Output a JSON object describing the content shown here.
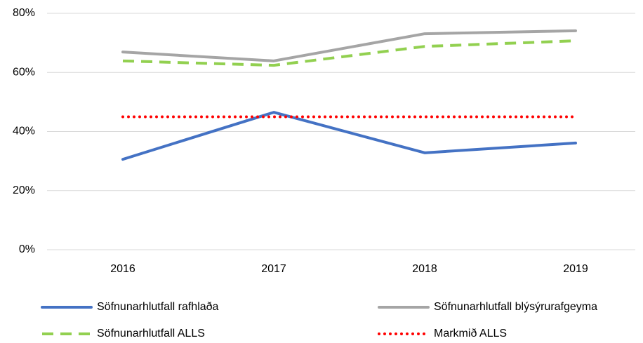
{
  "chart_data": {
    "type": "line",
    "categories": [
      "2016",
      "2017",
      "2018",
      "2019"
    ],
    "series": [
      {
        "name": "Söfnunarhlutfall rafhlaða",
        "color": "#4472c4",
        "style": "solid",
        "values": [
          30.6,
          46.5,
          32.8,
          36.1
        ]
      },
      {
        "name": "Söfnunarhlutfall blýsýrurafgeyma",
        "color": "#a5a5a5",
        "style": "solid",
        "values": [
          66.9,
          63.9,
          73.1,
          74.1
        ]
      },
      {
        "name": "Söfnunarhlutfall ALLS",
        "color": "#92d050",
        "style": "dashed",
        "values": [
          63.9,
          62.4,
          68.8,
          70.7
        ]
      },
      {
        "name": "Markmið ALLS",
        "color": "#ff0000",
        "style": "dotted",
        "values": [
          45,
          45,
          45,
          45
        ]
      }
    ],
    "ylim": [
      0,
      80
    ],
    "yticks": [
      {
        "value": 0,
        "label": "0%"
      },
      {
        "value": 20,
        "label": "20%"
      },
      {
        "value": 40,
        "label": "40%"
      },
      {
        "value": 60,
        "label": "60%"
      },
      {
        "value": 80,
        "label": "80%"
      }
    ],
    "grid": true
  }
}
